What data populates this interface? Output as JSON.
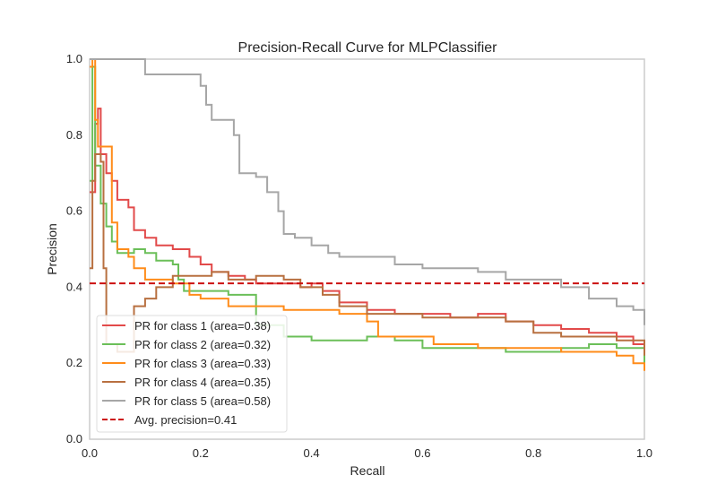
{
  "chart_data": {
    "type": "line",
    "title": "Precision-Recall Curve for MLPClassifier",
    "xlabel": "Recall",
    "ylabel": "Precision",
    "xlim": [
      0,
      1
    ],
    "ylim": [
      0,
      1
    ],
    "xticks": [
      "0.0",
      "0.2",
      "0.4",
      "0.6",
      "0.8",
      "1.0"
    ],
    "yticks": [
      "0.0",
      "0.2",
      "0.4",
      "0.6",
      "0.8",
      "1.0"
    ],
    "grid": false,
    "legend_position": "lower-left",
    "series": [
      {
        "name": "PR for class 1 (area=0.38)",
        "color": "#e24a4a",
        "points": [
          [
            0,
            0.65
          ],
          [
            0.01,
            0.83
          ],
          [
            0.015,
            0.87
          ],
          [
            0.02,
            0.75
          ],
          [
            0.03,
            0.7
          ],
          [
            0.04,
            0.68
          ],
          [
            0.05,
            0.63
          ],
          [
            0.07,
            0.61
          ],
          [
            0.08,
            0.55
          ],
          [
            0.1,
            0.53
          ],
          [
            0.12,
            0.51
          ],
          [
            0.15,
            0.5
          ],
          [
            0.18,
            0.48
          ],
          [
            0.2,
            0.46
          ],
          [
            0.22,
            0.44
          ],
          [
            0.25,
            0.43
          ],
          [
            0.28,
            0.42
          ],
          [
            0.3,
            0.41
          ],
          [
            0.35,
            0.41
          ],
          [
            0.38,
            0.4
          ],
          [
            0.4,
            0.41
          ],
          [
            0.42,
            0.39
          ],
          [
            0.45,
            0.36
          ],
          [
            0.5,
            0.34
          ],
          [
            0.55,
            0.33
          ],
          [
            0.6,
            0.33
          ],
          [
            0.65,
            0.32
          ],
          [
            0.7,
            0.33
          ],
          [
            0.75,
            0.31
          ],
          [
            0.8,
            0.3
          ],
          [
            0.85,
            0.29
          ],
          [
            0.9,
            0.28
          ],
          [
            0.95,
            0.27
          ],
          [
            0.98,
            0.25
          ],
          [
            1.0,
            0.23
          ]
        ]
      },
      {
        "name": "PR for class 2 (area=0.32)",
        "color": "#6bbf59",
        "points": [
          [
            0,
            0.68
          ],
          [
            0.005,
            0.98
          ],
          [
            0.01,
            0.72
          ],
          [
            0.02,
            0.62
          ],
          [
            0.03,
            0.56
          ],
          [
            0.04,
            0.52
          ],
          [
            0.05,
            0.49
          ],
          [
            0.08,
            0.5
          ],
          [
            0.1,
            0.49
          ],
          [
            0.12,
            0.47
          ],
          [
            0.15,
            0.46
          ],
          [
            0.16,
            0.42
          ],
          [
            0.17,
            0.39
          ],
          [
            0.2,
            0.39
          ],
          [
            0.25,
            0.38
          ],
          [
            0.3,
            0.3
          ],
          [
            0.35,
            0.27
          ],
          [
            0.4,
            0.26
          ],
          [
            0.45,
            0.26
          ],
          [
            0.5,
            0.27
          ],
          [
            0.55,
            0.26
          ],
          [
            0.6,
            0.24
          ],
          [
            0.65,
            0.24
          ],
          [
            0.7,
            0.24
          ],
          [
            0.75,
            0.23
          ],
          [
            0.8,
            0.23
          ],
          [
            0.85,
            0.24
          ],
          [
            0.9,
            0.25
          ],
          [
            0.95,
            0.24
          ],
          [
            1.0,
            0.19
          ]
        ]
      },
      {
        "name": "PR for class 3 (area=0.33)",
        "color": "#ff8c1a",
        "points": [
          [
            0,
            0.98
          ],
          [
            0.005,
            1.0
          ],
          [
            0.01,
            0.84
          ],
          [
            0.015,
            0.77
          ],
          [
            0.03,
            0.77
          ],
          [
            0.04,
            0.57
          ],
          [
            0.05,
            0.5
          ],
          [
            0.07,
            0.48
          ],
          [
            0.08,
            0.45
          ],
          [
            0.1,
            0.42
          ],
          [
            0.12,
            0.42
          ],
          [
            0.15,
            0.41
          ],
          [
            0.18,
            0.38
          ],
          [
            0.2,
            0.37
          ],
          [
            0.25,
            0.35
          ],
          [
            0.3,
            0.35
          ],
          [
            0.35,
            0.34
          ],
          [
            0.4,
            0.34
          ],
          [
            0.45,
            0.33
          ],
          [
            0.5,
            0.31
          ],
          [
            0.52,
            0.27
          ],
          [
            0.55,
            0.27
          ],
          [
            0.6,
            0.27
          ],
          [
            0.62,
            0.25
          ],
          [
            0.65,
            0.25
          ],
          [
            0.7,
            0.24
          ],
          [
            0.75,
            0.24
          ],
          [
            0.8,
            0.24
          ],
          [
            0.85,
            0.23
          ],
          [
            0.9,
            0.23
          ],
          [
            0.95,
            0.22
          ],
          [
            0.98,
            0.2
          ],
          [
            1.0,
            0.18
          ]
        ]
      },
      {
        "name": "PR for class 4 (area=0.35)",
        "color": "#b87040",
        "points": [
          [
            0,
            0.45
          ],
          [
            0.005,
            0.68
          ],
          [
            0.01,
            0.75
          ],
          [
            0.02,
            0.73
          ],
          [
            0.025,
            0.45
          ],
          [
            0.03,
            0.25
          ],
          [
            0.05,
            0.23
          ],
          [
            0.08,
            0.35
          ],
          [
            0.1,
            0.37
          ],
          [
            0.12,
            0.4
          ],
          [
            0.15,
            0.43
          ],
          [
            0.2,
            0.43
          ],
          [
            0.22,
            0.44
          ],
          [
            0.25,
            0.42
          ],
          [
            0.3,
            0.43
          ],
          [
            0.35,
            0.42
          ],
          [
            0.38,
            0.4
          ],
          [
            0.4,
            0.4
          ],
          [
            0.42,
            0.38
          ],
          [
            0.45,
            0.35
          ],
          [
            0.5,
            0.33
          ],
          [
            0.55,
            0.33
          ],
          [
            0.6,
            0.32
          ],
          [
            0.65,
            0.32
          ],
          [
            0.7,
            0.32
          ],
          [
            0.75,
            0.31
          ],
          [
            0.8,
            0.28
          ],
          [
            0.85,
            0.27
          ],
          [
            0.9,
            0.27
          ],
          [
            0.95,
            0.26
          ],
          [
            1.0,
            0.22
          ]
        ]
      },
      {
        "name": "PR for class 5 (area=0.58)",
        "color": "#a6a6a6",
        "points": [
          [
            0,
            1.0
          ],
          [
            0.08,
            1.0
          ],
          [
            0.1,
            0.96
          ],
          [
            0.15,
            0.96
          ],
          [
            0.2,
            0.93
          ],
          [
            0.21,
            0.88
          ],
          [
            0.22,
            0.84
          ],
          [
            0.25,
            0.84
          ],
          [
            0.26,
            0.8
          ],
          [
            0.27,
            0.7
          ],
          [
            0.3,
            0.69
          ],
          [
            0.32,
            0.65
          ],
          [
            0.34,
            0.6
          ],
          [
            0.35,
            0.54
          ],
          [
            0.37,
            0.53
          ],
          [
            0.4,
            0.51
          ],
          [
            0.43,
            0.49
          ],
          [
            0.45,
            0.48
          ],
          [
            0.5,
            0.48
          ],
          [
            0.55,
            0.46
          ],
          [
            0.6,
            0.45
          ],
          [
            0.65,
            0.45
          ],
          [
            0.7,
            0.44
          ],
          [
            0.75,
            0.42
          ],
          [
            0.8,
            0.42
          ],
          [
            0.85,
            0.4
          ],
          [
            0.9,
            0.37
          ],
          [
            0.95,
            0.35
          ],
          [
            0.98,
            0.34
          ],
          [
            1.0,
            0.3
          ]
        ]
      }
    ],
    "reference_line": {
      "name": "Avg. precision=0.41",
      "value": 0.41,
      "color": "#cc1010"
    }
  }
}
